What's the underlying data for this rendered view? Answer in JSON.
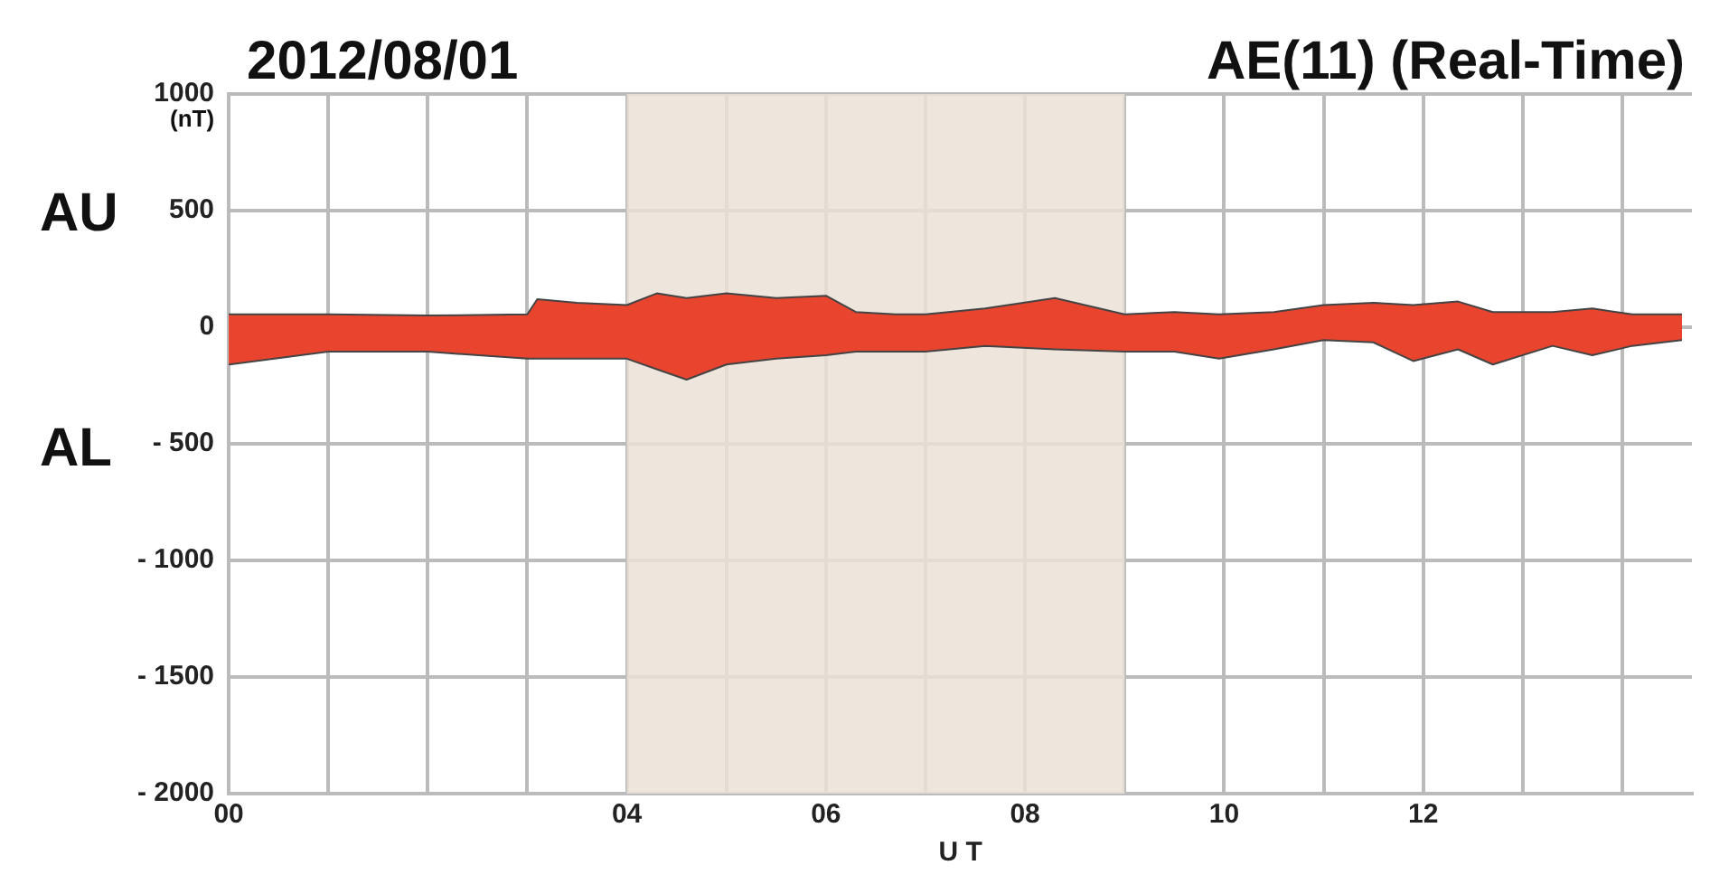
{
  "chart_data": {
    "type": "area",
    "title": "2012/08/01",
    "subtitle": "AE(11) (Real-Time)",
    "xlabel": "U T",
    "ylabel": "(nT)",
    "annotations": [
      "AU",
      "AL"
    ],
    "series": [
      {
        "color": "#e8442e",
        "x": [
          0,
          1,
          2,
          3,
          3.1,
          3.5,
          4,
          4.3,
          4.6,
          5,
          5.5,
          6,
          6.3,
          6.7,
          7,
          7.6,
          8.3,
          9,
          9.5,
          9.95,
          10.5,
          11,
          11.5,
          11.9,
          12.35,
          12.7,
          13.3,
          13.7,
          14.1,
          14.6
        ],
        "values": [
          55,
          55,
          50,
          55,
          120,
          105,
          95,
          145,
          125,
          145,
          125,
          135,
          65,
          55,
          55,
          80,
          125,
          55,
          65,
          55,
          65,
          95,
          105,
          95,
          110,
          65,
          65,
          80,
          55,
          55
        ]
      },
      {
        "color": "#e8442e",
        "x": [
          0,
          1,
          2,
          3,
          3.1,
          3.5,
          4,
          4.3,
          4.6,
          5,
          5.5,
          6,
          6.3,
          6.7,
          7,
          7.6,
          8.3,
          9,
          9.5,
          9.95,
          10.5,
          11,
          11.5,
          11.9,
          12.35,
          12.7,
          13.3,
          13.7,
          14.1,
          14.6
        ],
        "values": [
          -160,
          -105,
          -105,
          -135,
          -135,
          -135,
          -135,
          -180,
          -225,
          -160,
          -135,
          -120,
          -105,
          -105,
          -105,
          -80,
          -95,
          -105,
          -105,
          -135,
          -95,
          -55,
          -65,
          -145,
          -95,
          -160,
          -80,
          -120,
          -80,
          -55
        ]
      }
    ],
    "xlim": [
      0,
      14.7
    ],
    "xticks": [
      {
        "value": 0,
        "label": "00"
      },
      {
        "value": 1,
        "label": null
      },
      {
        "value": 2,
        "label": null
      },
      {
        "value": 3,
        "label": null
      },
      {
        "value": 4,
        "label": "04"
      },
      {
        "value": 5,
        "label": null
      },
      {
        "value": 6,
        "label": "06"
      },
      {
        "value": 7,
        "label": null
      },
      {
        "value": 8,
        "label": "08"
      },
      {
        "value": 9,
        "label": null
      },
      {
        "value": 10,
        "label": "10"
      },
      {
        "value": 11,
        "label": null
      },
      {
        "value": 12,
        "label": "12"
      },
      {
        "value": 13,
        "label": null
      },
      {
        "value": 14,
        "label": null
      }
    ],
    "ylim": [
      -2000,
      1000
    ],
    "yticks": [
      {
        "value": -2000,
        "label": "- 2000"
      },
      {
        "value": -1500,
        "label": "- 1500"
      },
      {
        "value": -1000,
        "label": "- 1000"
      },
      {
        "value": -500,
        "label": "- 500"
      },
      0,
      500,
      1000
    ],
    "bands": [
      {
        "axis": "x",
        "from": 4,
        "to": 9,
        "color": "#ebe0d6"
      }
    ],
    "grid": true
  }
}
